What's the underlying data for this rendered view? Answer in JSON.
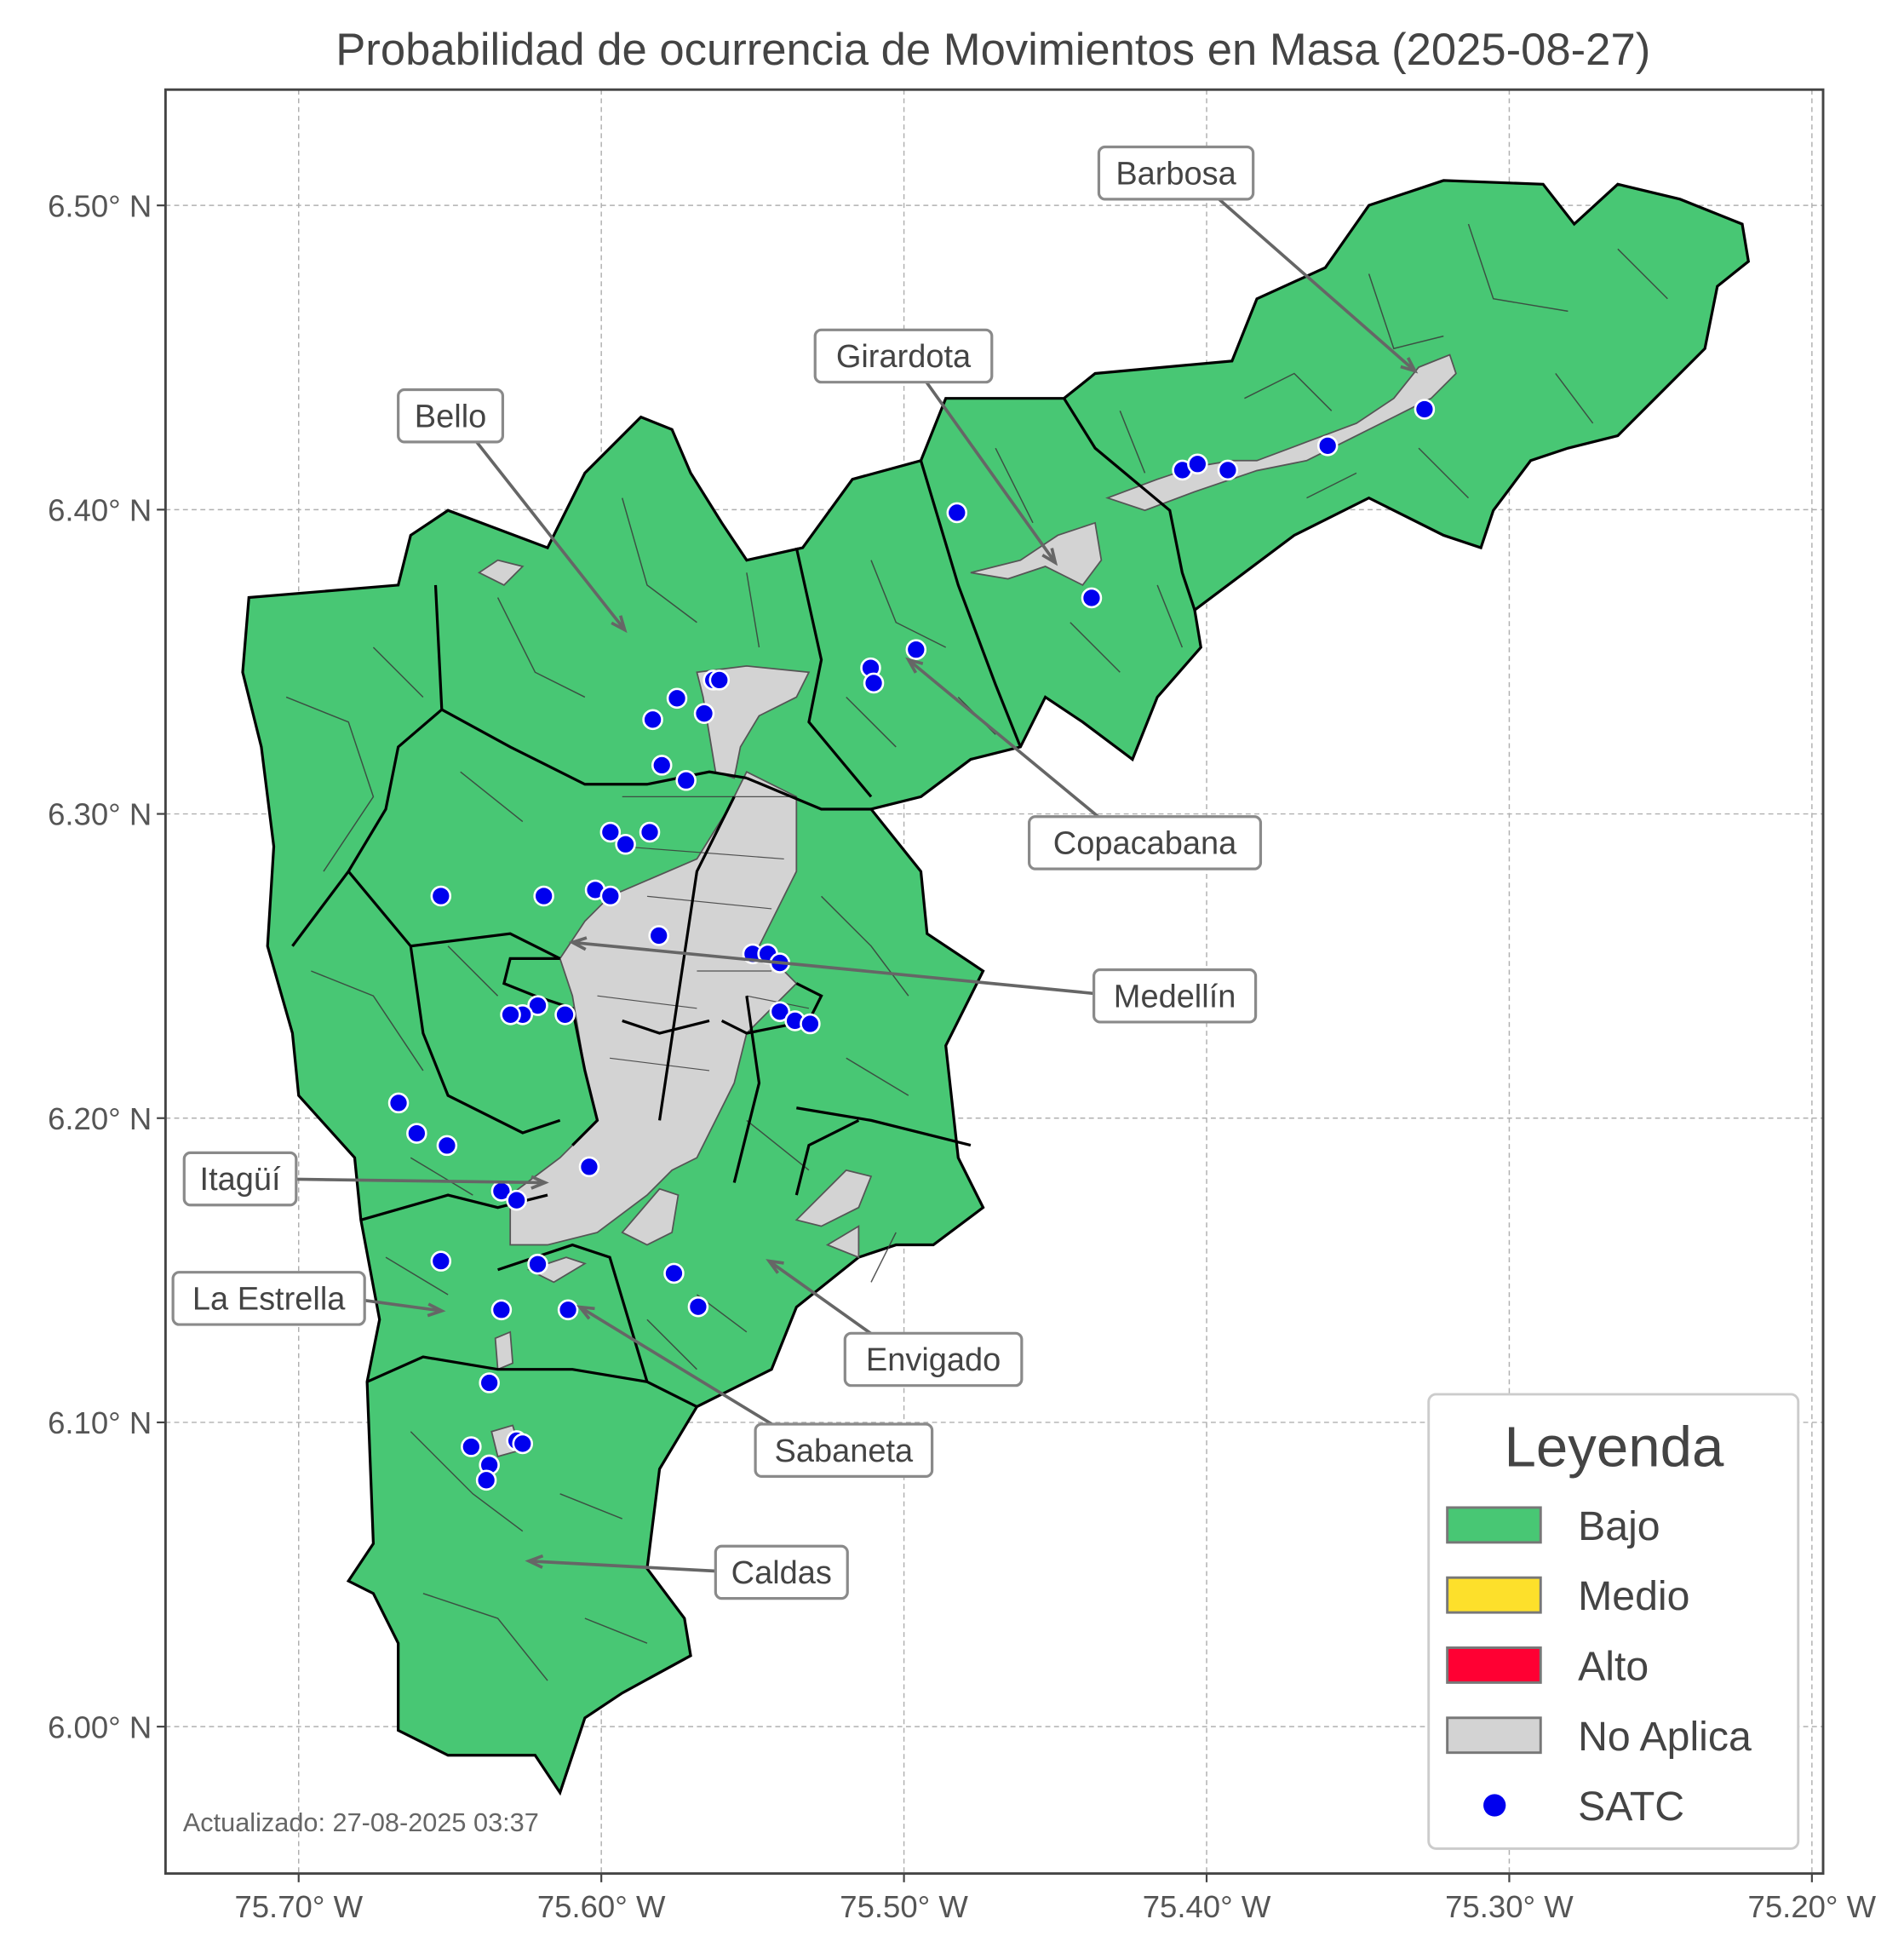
{
  "title": "Probabilidad de ocurrencia de Movimientos en Masa (2025-08-27)",
  "footer": "Actualizado: 27-08-2025 03:37",
  "colors": {
    "bajo": "#48c774",
    "medio": "#fde02b",
    "alto": "#ff0033",
    "no_aplica": "#d3d3d3",
    "satc": "#0000ee",
    "boundary": "#000000"
  },
  "x_ticks": [
    "75.70° W",
    "75.60° W",
    "75.50° W",
    "75.40° W",
    "75.30° W",
    "75.20° W"
  ],
  "y_ticks": [
    "6.50° N",
    "6.40° N",
    "6.30° N",
    "6.20° N",
    "6.10° N",
    "6.00° N"
  ],
  "legend": {
    "title": "Leyenda",
    "items": [
      {
        "label": "Bajo",
        "color": "#48c774",
        "kind": "patch"
      },
      {
        "label": "Medio",
        "color": "#fde02b",
        "kind": "patch"
      },
      {
        "label": "Alto",
        "color": "#ff0033",
        "kind": "patch"
      },
      {
        "label": "No Aplica",
        "color": "#d3d3d3",
        "kind": "patch"
      },
      {
        "label": "SATC",
        "color": "#0000ee",
        "kind": "marker"
      }
    ]
  },
  "municipalities": [
    "Barbosa",
    "Girardota",
    "Bello",
    "Copacabana",
    "Medellín",
    "Itagüí",
    "La Estrella",
    "Envigado",
    "Sabaneta",
    "Caldas"
  ],
  "chart_data": {
    "type": "scatter",
    "title": "Probabilidad de ocurrencia de Movimientos en Masa (2025-08-27)",
    "xlim": [
      -75.744,
      -75.196
    ],
    "ylim": [
      5.957,
      6.543
    ],
    "grid": true,
    "legend_placement": "bottom-right",
    "region_risk_level": "Bajo",
    "series": [
      {
        "name": "SATC",
        "points": [
          [
            -75.4825,
            6.399
          ],
          [
            -75.408,
            6.413
          ],
          [
            -75.403,
            6.415
          ],
          [
            -75.393,
            6.413
          ],
          [
            -75.36,
            6.421
          ],
          [
            -75.328,
            6.433
          ],
          [
            -75.438,
            6.371
          ],
          [
            -75.496,
            6.354
          ],
          [
            -75.511,
            6.348
          ],
          [
            -75.51,
            6.343
          ],
          [
            -75.563,
            6.344
          ],
          [
            -75.561,
            6.344
          ],
          [
            -75.575,
            6.338
          ],
          [
            -75.583,
            6.331
          ],
          [
            -75.566,
            6.333
          ],
          [
            -75.58,
            6.316
          ],
          [
            -75.572,
            6.311
          ],
          [
            -75.597,
            6.294
          ],
          [
            -75.592,
            6.29
          ],
          [
            -75.584,
            6.294
          ],
          [
            -75.653,
            6.273
          ],
          [
            -75.619,
            6.273
          ],
          [
            -75.602,
            6.275
          ],
          [
            -75.597,
            6.273
          ],
          [
            -75.581,
            6.26
          ],
          [
            -75.55,
            6.254
          ],
          [
            -75.545,
            6.254
          ],
          [
            -75.541,
            6.251
          ],
          [
            -75.541,
            6.235
          ],
          [
            -75.536,
            6.232
          ],
          [
            -75.531,
            6.231
          ],
          [
            -75.621,
            6.237
          ],
          [
            -75.626,
            6.234
          ],
          [
            -75.63,
            6.234
          ],
          [
            -75.612,
            6.234
          ],
          [
            -75.667,
            6.205
          ],
          [
            -75.661,
            6.195
          ],
          [
            -75.651,
            6.191
          ],
          [
            -75.604,
            6.184
          ],
          [
            -75.633,
            6.176
          ],
          [
            -75.628,
            6.173
          ],
          [
            -75.653,
            6.153
          ],
          [
            -75.621,
            6.152
          ],
          [
            -75.633,
            6.137
          ],
          [
            -75.611,
            6.137
          ],
          [
            -75.576,
            6.149
          ],
          [
            -75.568,
            6.138
          ],
          [
            -75.637,
            6.113
          ],
          [
            -75.643,
            6.092
          ],
          [
            -75.628,
            6.094
          ],
          [
            -75.626,
            6.093
          ],
          [
            -75.637,
            6.086
          ],
          [
            -75.638,
            6.081
          ]
        ]
      }
    ]
  }
}
